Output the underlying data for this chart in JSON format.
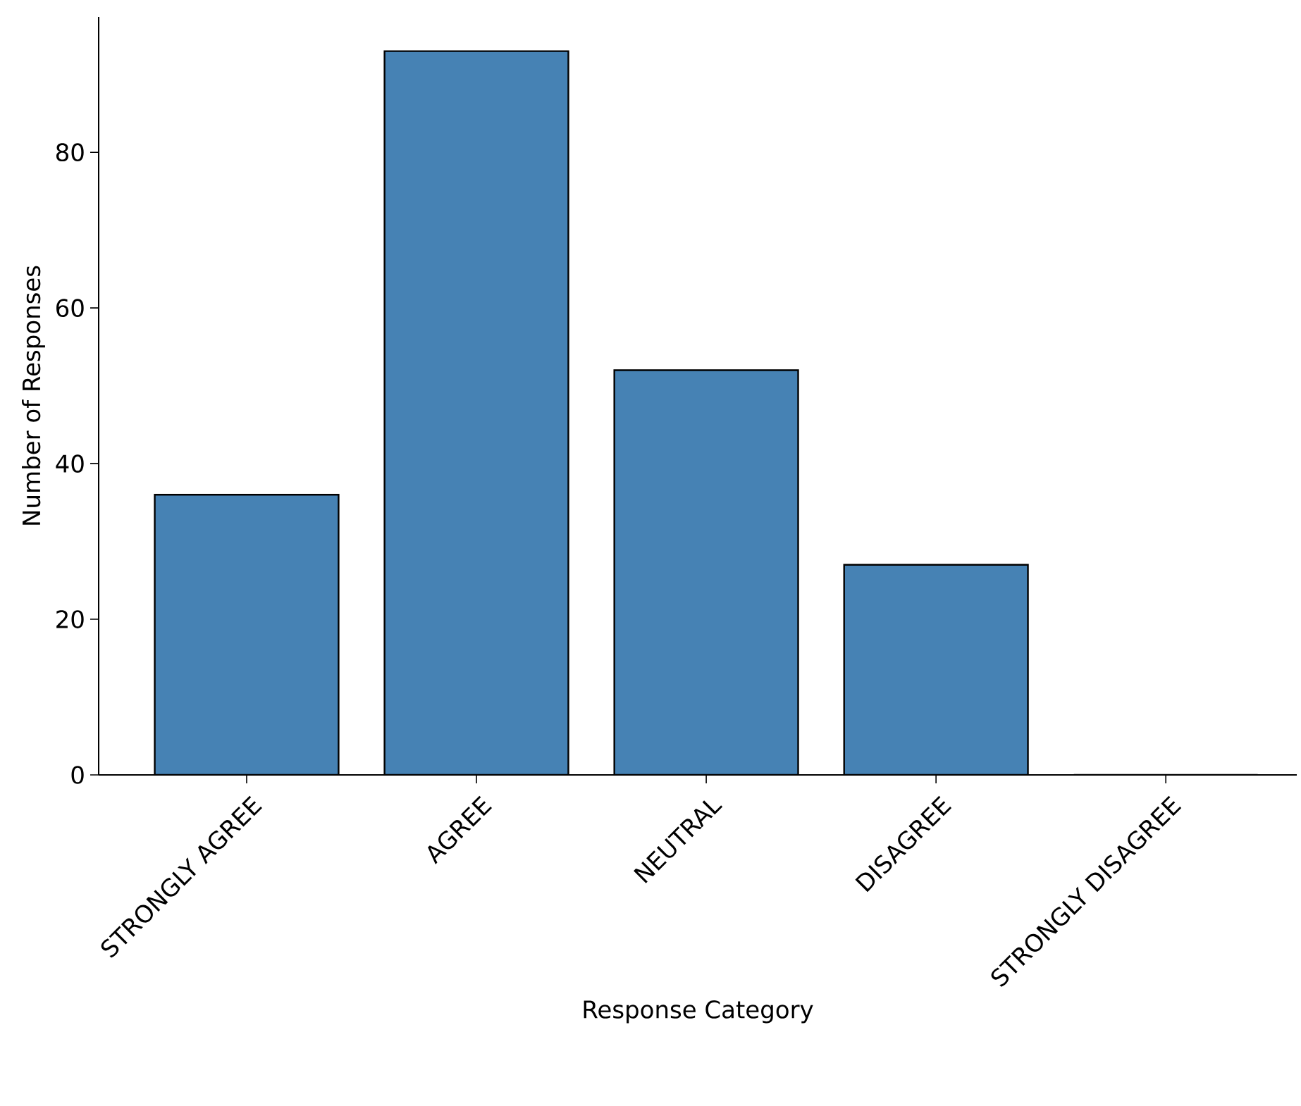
{
  "chart_data": {
    "type": "bar",
    "xlabel": "Response Category",
    "ylabel": "Number of Responses",
    "categories": [
      "STRONGLY AGREE",
      "AGREE",
      "NEUTRAL",
      "DISAGREE",
      "STRONGLY DISAGREE"
    ],
    "values": [
      36,
      93,
      52,
      27,
      0
    ],
    "color": "#4682b4",
    "ylim": [
      0,
      97.4
    ],
    "yticks": [
      0,
      20,
      40,
      60,
      80
    ]
  }
}
